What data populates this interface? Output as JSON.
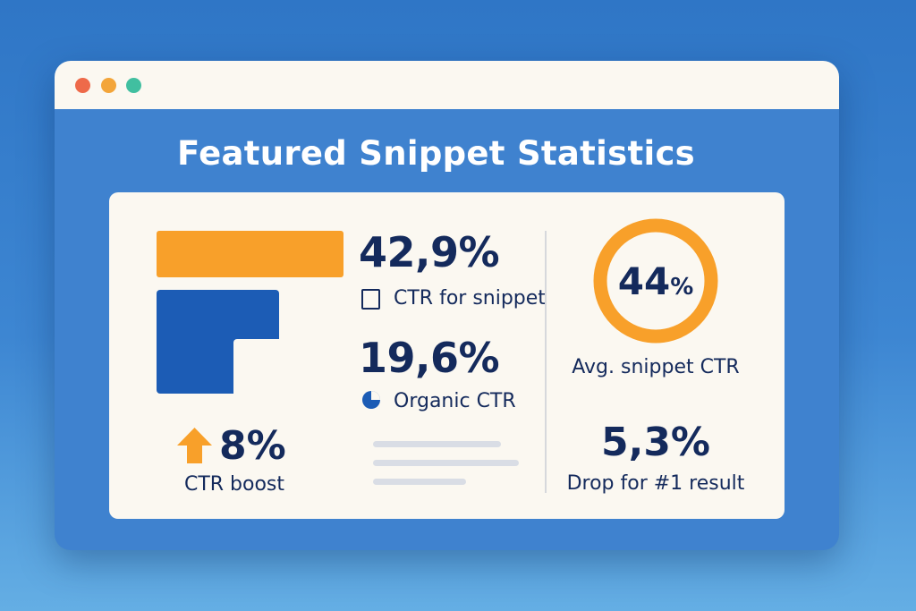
{
  "window": {
    "title": "Featured Snippet Statistics",
    "controls": [
      {
        "name": "close",
        "color": "#ee6a4a"
      },
      {
        "name": "minimize",
        "color": "#f3a53a"
      },
      {
        "name": "zoom",
        "color": "#41bfa0"
      }
    ]
  },
  "stats": {
    "snippet_ctr": {
      "value": "42,9%",
      "label": "CTR for snippet",
      "icon": "square-icon"
    },
    "organic_ctr": {
      "value": "19,6%",
      "label": "Organic CTR",
      "icon": "pie-icon"
    },
    "ctr_boost": {
      "value": "8%",
      "label": "CTR boost",
      "icon": "arrow-up-icon"
    },
    "avg_snippet_ctr": {
      "number": "44",
      "unit": "%",
      "label": "Avg. snippet CTR",
      "progress": 1.0
    },
    "drop_first_result": {
      "value": "5,3%",
      "label": "Drop for #1 result"
    }
  },
  "colors": {
    "accent_orange": "#f8a02a",
    "accent_blue": "#1c5cb5",
    "text_dark": "#142a5c",
    "card_bg": "#fbf8f1"
  }
}
